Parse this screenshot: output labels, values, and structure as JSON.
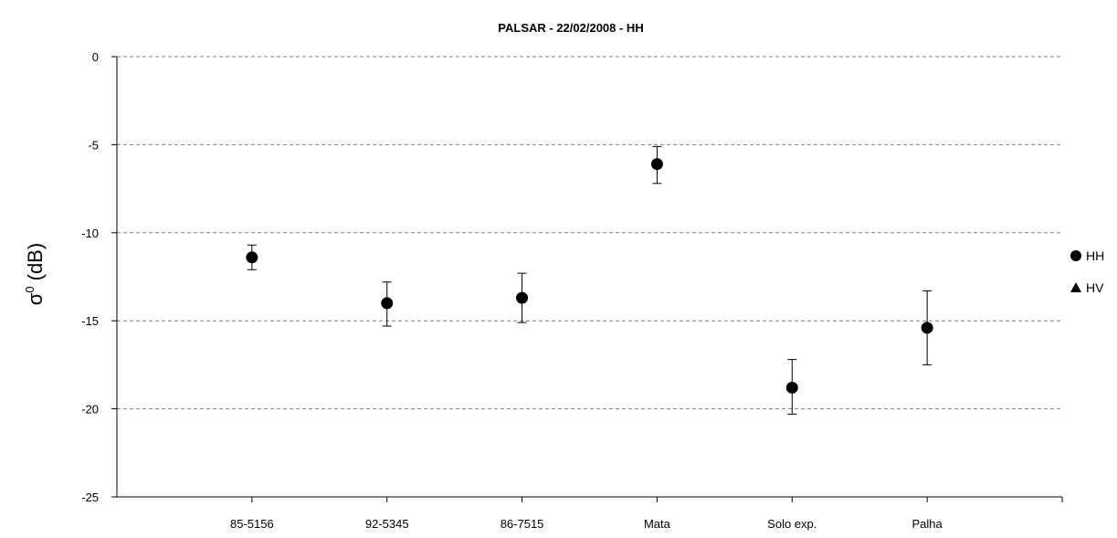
{
  "chart_data": {
    "type": "scatter",
    "title": "PALSAR - 22/02/2008 - HH",
    "ylabel_symbol": "σ",
    "ylabel_superscript": "0",
    "ylabel_unit": "(dB)",
    "categories": [
      "85-5156",
      "92-5345",
      "86-7515",
      "Mata",
      "Solo exp.",
      "Palha"
    ],
    "ylim": [
      -25,
      0
    ],
    "yticks": [
      0,
      -5,
      -10,
      -15,
      -20,
      -25
    ],
    "grid": "horizontal dashed",
    "legend_placement": "right",
    "series": [
      {
        "name": "HH",
        "marker": "circle",
        "values": [
          -11.4,
          -14.0,
          -13.7,
          -6.1,
          -18.8,
          -15.4
        ],
        "error_low": [
          -12.1,
          -15.3,
          -15.1,
          -7.2,
          -20.3,
          -17.5
        ],
        "error_high": [
          -10.7,
          -12.8,
          -12.3,
          -5.1,
          -17.2,
          -13.3
        ]
      },
      {
        "name": "HV",
        "marker": "triangle",
        "values": []
      }
    ]
  }
}
